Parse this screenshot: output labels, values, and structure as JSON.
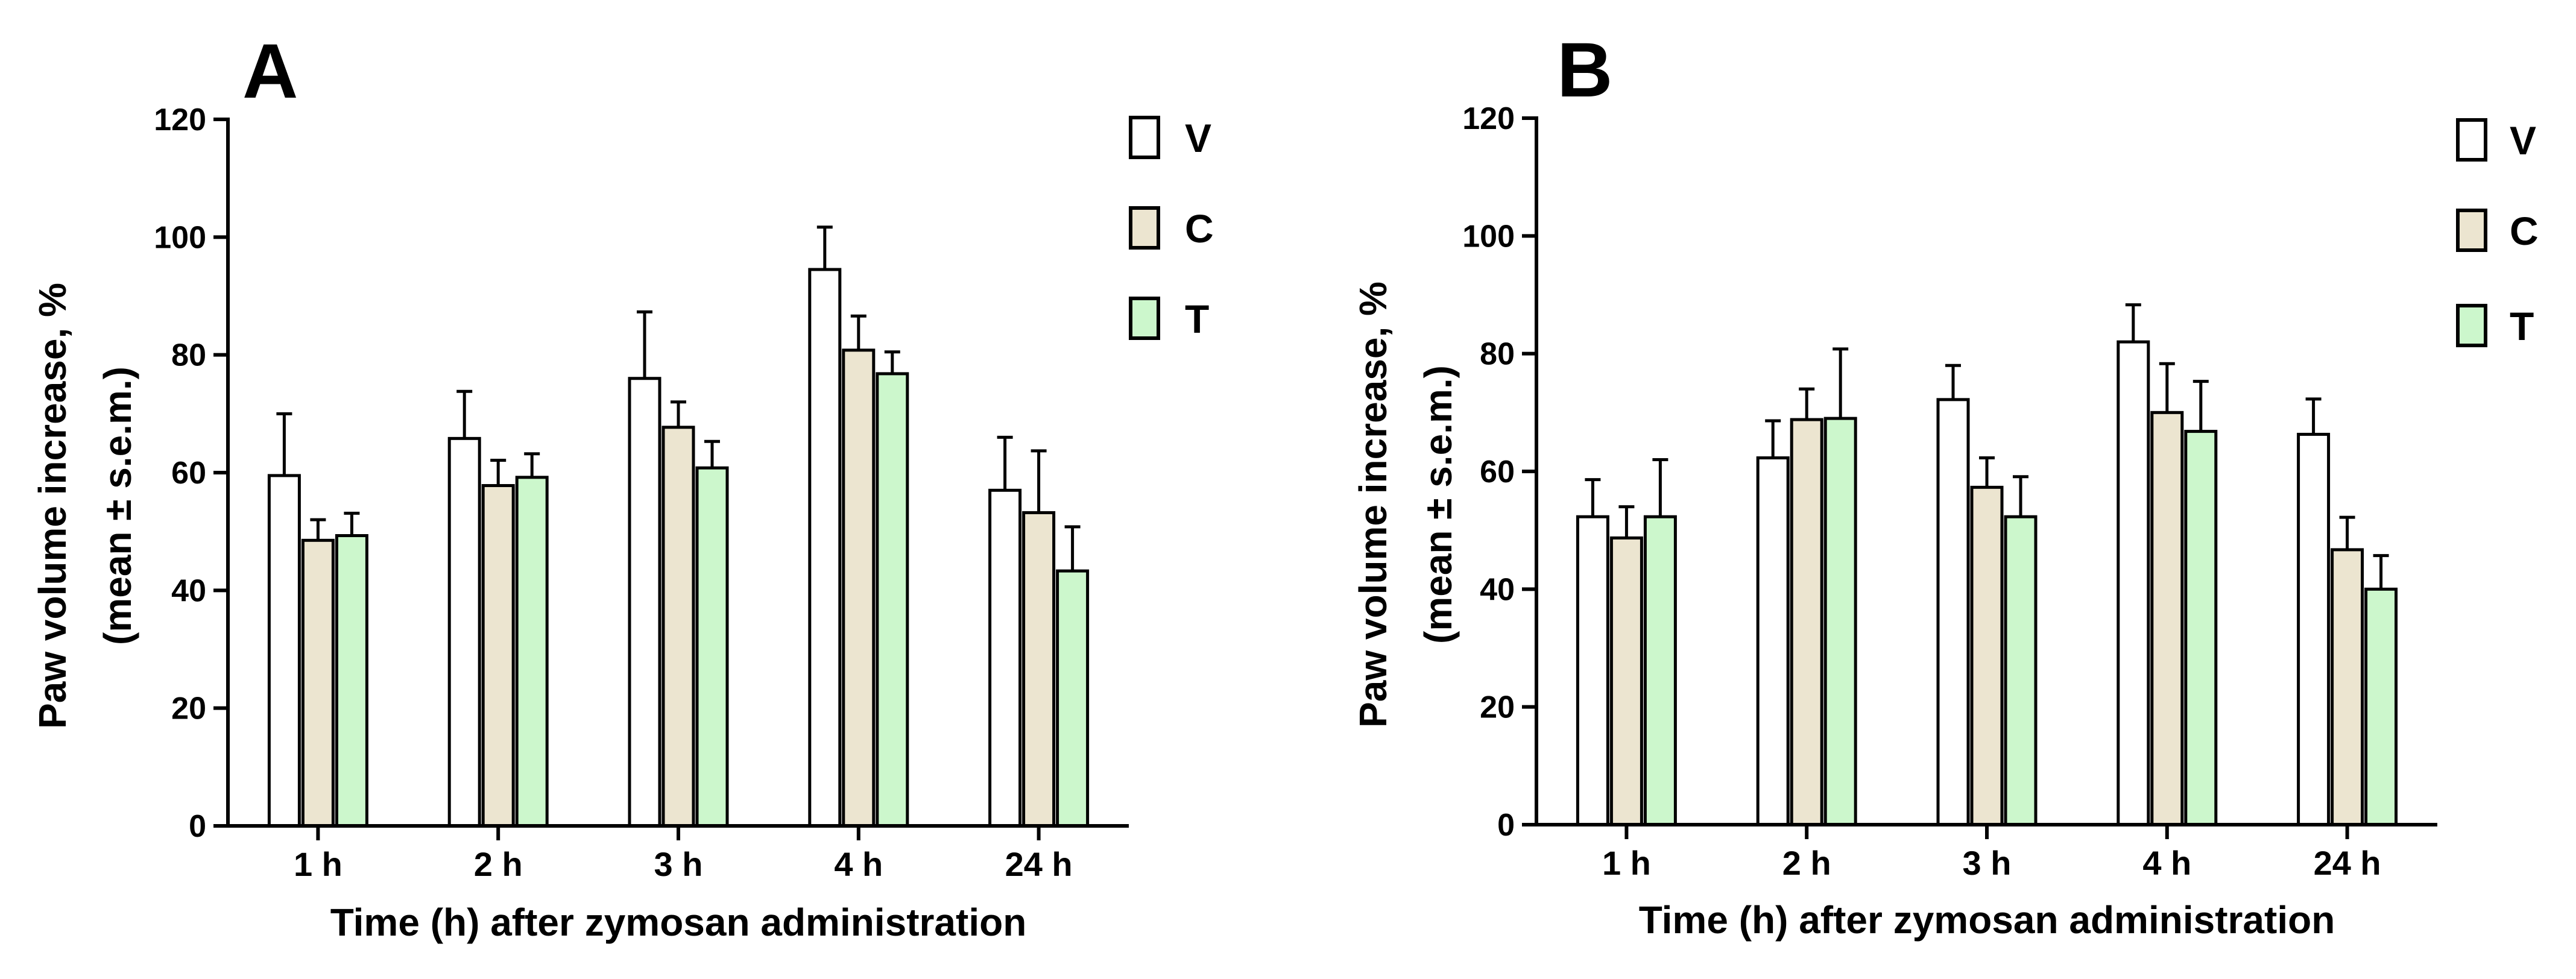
{
  "figure": {
    "colors": {
      "V": "#ffffff",
      "C": "#ece5d0",
      "T": "#ccf7cc",
      "stroke": "#000000"
    }
  },
  "chart_data": [
    {
      "panel": "A",
      "type": "bar",
      "categories": [
        "1 h",
        "2 h",
        "3 h",
        "4 h",
        "24 h"
      ],
      "series": [
        {
          "name": "V",
          "values": [
            59.5,
            65.8,
            76.0,
            94.5,
            57.0
          ],
          "errors": [
            10.5,
            8.0,
            11.3,
            7.2,
            9.0
          ]
        },
        {
          "name": "C",
          "values": [
            48.5,
            57.8,
            67.7,
            80.8,
            53.2
          ],
          "errors": [
            3.5,
            4.3,
            4.3,
            5.8,
            10.5
          ]
        },
        {
          "name": "T",
          "values": [
            49.3,
            59.2,
            60.8,
            76.8,
            43.3
          ],
          "errors": [
            3.8,
            4.0,
            4.5,
            3.7,
            7.5
          ]
        }
      ],
      "xlabel": "Time (h) after zymosan administration",
      "ylabel_line1": "Paw volume increase, %",
      "ylabel_line2": "(mean ± s.e.m.)",
      "ylim": [
        0,
        120
      ],
      "yticks": [
        0,
        20,
        40,
        60,
        80,
        100,
        120
      ],
      "legend": [
        "V",
        "C",
        "T"
      ],
      "legend_position": "top-right",
      "grid": false
    },
    {
      "panel": "B",
      "type": "bar",
      "categories": [
        "1 h",
        "2 h",
        "3 h",
        "4 h",
        "24 h"
      ],
      "series": [
        {
          "name": "V",
          "values": [
            52.3,
            62.3,
            72.2,
            82.0,
            66.3
          ],
          "errors": [
            6.3,
            6.3,
            5.8,
            6.3,
            6.0
          ]
        },
        {
          "name": "C",
          "values": [
            48.7,
            68.8,
            57.3,
            70.0,
            46.7
          ],
          "errors": [
            5.3,
            5.2,
            5.0,
            8.3,
            5.5
          ]
        },
        {
          "name": "T",
          "values": [
            52.3,
            69.0,
            52.3,
            66.8,
            40.0
          ],
          "errors": [
            9.7,
            11.8,
            6.8,
            8.5,
            5.7
          ]
        }
      ],
      "xlabel": "Time (h) after zymosan administration",
      "ylabel_line1": "Paw volume increase, %",
      "ylabel_line2": "(mean ± s.e.m.)",
      "ylim": [
        0,
        120
      ],
      "yticks": [
        0,
        20,
        40,
        60,
        80,
        100,
        120
      ],
      "legend": [
        "V",
        "C",
        "T"
      ],
      "legend_position": "top-right",
      "grid": false
    }
  ]
}
